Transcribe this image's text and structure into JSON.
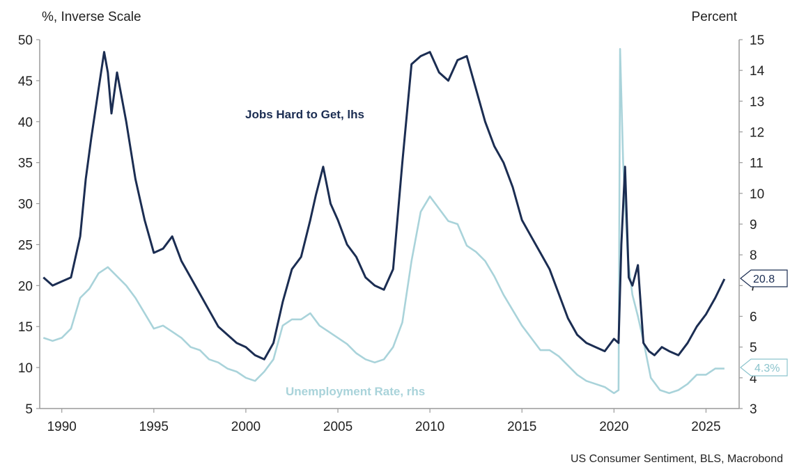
{
  "chart_data": {
    "type": "line",
    "left_axis_label": "%, Inverse Scale",
    "right_axis_label": "Percent",
    "source": "US Consumer Sentiment, BLS, Macrobond",
    "x_range": [
      1988.8,
      2026.8
    ],
    "x_ticks": [
      "1990",
      "1995",
      "2000",
      "2005",
      "2010",
      "2015",
      "2020",
      "2025"
    ],
    "left_ylim": [
      5,
      50
    ],
    "left_ticks": [
      "5",
      "10",
      "15",
      "20",
      "25",
      "30",
      "35",
      "40",
      "45",
      "50"
    ],
    "right_ylim": [
      3,
      15
    ],
    "right_ticks": [
      "3",
      "4",
      "5",
      "6",
      "7",
      "8",
      "9",
      "10",
      "11",
      "12",
      "13",
      "14",
      "15"
    ],
    "grid": false,
    "colors": {
      "jobs": "#1b2d52",
      "unemployment": "#a9d3da"
    },
    "series": [
      {
        "name": "Jobs Hard to Get, lhs",
        "axis": "left",
        "last_value_label": "20.8",
        "x": [
          1989.0,
          1989.5,
          1990.0,
          1990.5,
          1991.0,
          1991.3,
          1991.6,
          1992.0,
          1992.3,
          1992.5,
          1992.7,
          1993.0,
          1993.5,
          1994.0,
          1994.5,
          1995.0,
          1995.5,
          1996.0,
          1996.5,
          1997.0,
          1997.5,
          1998.0,
          1998.5,
          1999.0,
          1999.5,
          2000.0,
          2000.5,
          2001.0,
          2001.5,
          2002.0,
          2002.5,
          2003.0,
          2003.5,
          2003.8,
          2004.2,
          2004.6,
          2005.0,
          2005.5,
          2006.0,
          2006.5,
          2007.0,
          2007.5,
          2008.0,
          2008.5,
          2009.0,
          2009.5,
          2010.0,
          2010.5,
          2011.0,
          2011.5,
          2012.0,
          2012.5,
          2013.0,
          2013.5,
          2014.0,
          2014.5,
          2015.0,
          2015.5,
          2016.0,
          2016.5,
          2017.0,
          2017.5,
          2018.0,
          2018.5,
          2019.0,
          2019.5,
          2020.0,
          2020.25,
          2020.4,
          2020.6,
          2020.8,
          2021.0,
          2021.3,
          2021.6,
          2021.9,
          2022.2,
          2022.6,
          2023.0,
          2023.5,
          2024.0,
          2024.5,
          2025.0,
          2025.5,
          2026.0
        ],
        "values": [
          21,
          20,
          20.5,
          21,
          26,
          33,
          38,
          44,
          48.5,
          46,
          41,
          46,
          40,
          33,
          28,
          24,
          24.5,
          26,
          23,
          21,
          19,
          17,
          15,
          14,
          13,
          12.5,
          11.5,
          11,
          13,
          18,
          22,
          23.5,
          28,
          31,
          34.5,
          30,
          28,
          25,
          23.5,
          21,
          20,
          19.5,
          22,
          35,
          47,
          48,
          48.5,
          46,
          45,
          47.5,
          48,
          44,
          40,
          37,
          35,
          32,
          28,
          26,
          24,
          22,
          19,
          16,
          14,
          13,
          12.5,
          12,
          13.5,
          13,
          25,
          34.5,
          21,
          20,
          22.5,
          13,
          12,
          11.5,
          12.5,
          12,
          11.5,
          13,
          15,
          16.5,
          18.5,
          20.8
        ]
      },
      {
        "name": "Unemployment Rate, rhs",
        "axis": "right",
        "last_value_label": "4.3%",
        "x": [
          1989.0,
          1989.5,
          1990.0,
          1990.5,
          1991.0,
          1991.5,
          1992.0,
          1992.5,
          1993.0,
          1993.5,
          1994.0,
          1994.5,
          1995.0,
          1995.5,
          1996.0,
          1996.5,
          1997.0,
          1997.5,
          1998.0,
          1998.5,
          1999.0,
          1999.5,
          2000.0,
          2000.5,
          2001.0,
          2001.5,
          2002.0,
          2002.5,
          2003.0,
          2003.5,
          2004.0,
          2004.5,
          2005.0,
          2005.5,
          2006.0,
          2006.5,
          2007.0,
          2007.5,
          2008.0,
          2008.5,
          2009.0,
          2009.5,
          2010.0,
          2010.5,
          2011.0,
          2011.5,
          2012.0,
          2012.5,
          2013.0,
          2013.5,
          2014.0,
          2014.5,
          2015.0,
          2015.5,
          2016.0,
          2016.5,
          2017.0,
          2017.5,
          2018.0,
          2018.5,
          2019.0,
          2019.5,
          2020.0,
          2020.25,
          2020.33,
          2020.5,
          2020.75,
          2021.0,
          2021.3,
          2021.6,
          2022.0,
          2022.5,
          2023.0,
          2023.5,
          2024.0,
          2024.5,
          2025.0,
          2025.5,
          2026.0
        ],
        "values": [
          5.3,
          5.2,
          5.3,
          5.6,
          6.6,
          6.9,
          7.4,
          7.6,
          7.3,
          7.0,
          6.6,
          6.1,
          5.6,
          5.7,
          5.5,
          5.3,
          5.0,
          4.9,
          4.6,
          4.5,
          4.3,
          4.2,
          4.0,
          3.9,
          4.2,
          4.6,
          5.7,
          5.9,
          5.9,
          6.1,
          5.7,
          5.5,
          5.3,
          5.1,
          4.8,
          4.6,
          4.5,
          4.6,
          5.0,
          5.8,
          7.8,
          9.4,
          9.9,
          9.5,
          9.1,
          9.0,
          8.3,
          8.1,
          7.8,
          7.3,
          6.7,
          6.2,
          5.7,
          5.3,
          4.9,
          4.9,
          4.7,
          4.4,
          4.1,
          3.9,
          3.8,
          3.7,
          3.5,
          3.6,
          14.7,
          11.0,
          7.9,
          6.7,
          6.0,
          5.2,
          4.0,
          3.6,
          3.5,
          3.6,
          3.8,
          4.1,
          4.1,
          4.3,
          4.3
        ]
      }
    ]
  }
}
